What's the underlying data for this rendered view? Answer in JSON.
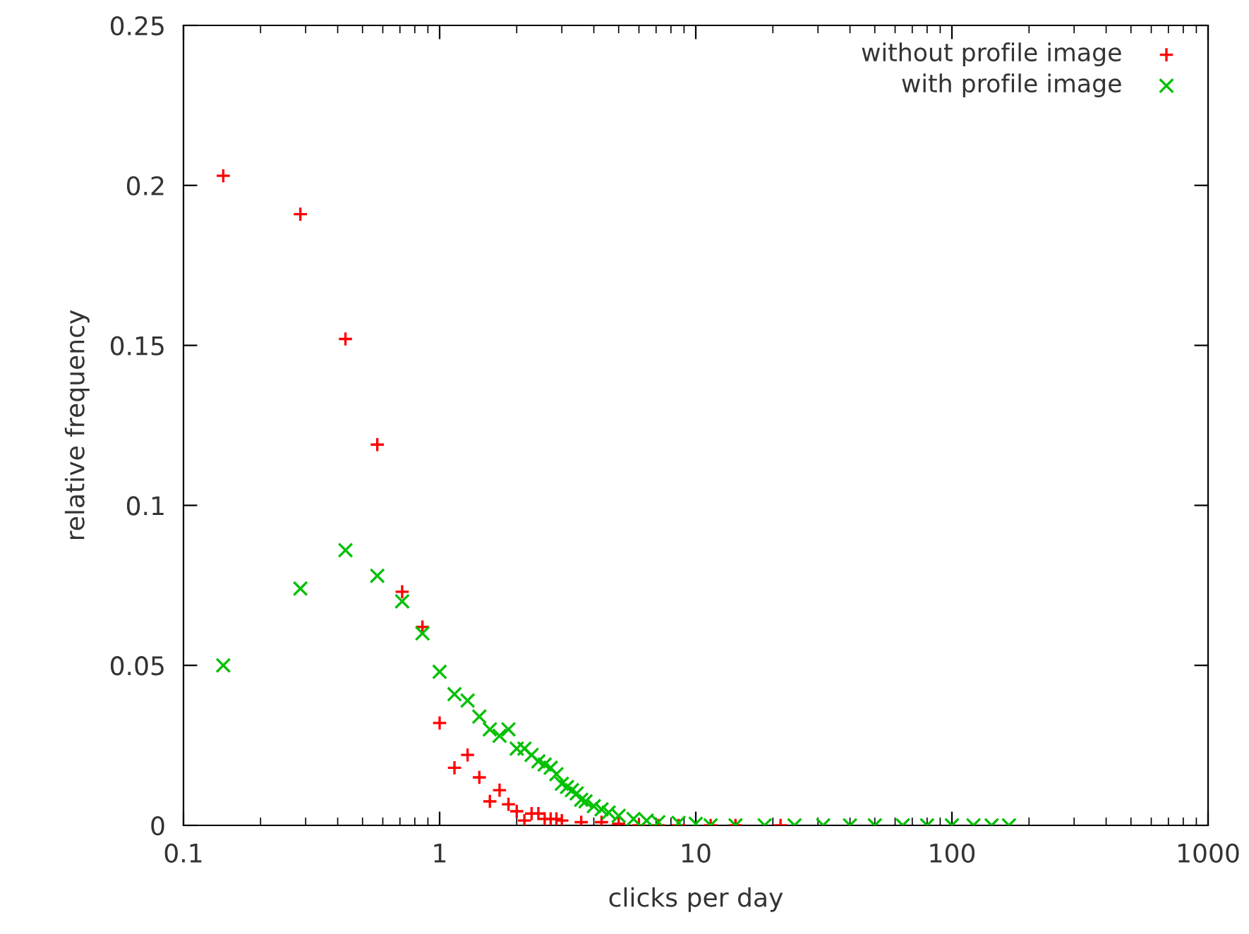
{
  "chart_data": {
    "type": "scatter",
    "xlabel": "clicks per day",
    "ylabel": "relative frequency",
    "log": "x",
    "xlim": [
      0.1,
      1000
    ],
    "xticks": [
      0.1,
      1,
      10,
      100,
      1000
    ],
    "ylim": [
      0,
      0.25
    ],
    "yticks": [
      0,
      0.05,
      0.1,
      0.15,
      0.2,
      0.25
    ],
    "grid": false,
    "legend": "top right",
    "series": [
      {
        "name": "without profile image",
        "color": "#ff0000",
        "marker": "plus",
        "x": [
          0.143,
          0.286,
          0.429,
          0.571,
          0.714,
          0.857,
          1.0,
          1.143,
          1.286,
          1.429,
          1.571,
          1.714,
          1.857,
          2.0,
          2.143,
          2.286,
          2.429,
          2.571,
          2.714,
          2.857,
          3.0,
          3.571,
          4.286,
          5.0,
          6.0,
          7.143,
          8.571,
          11.43,
          14.29,
          21.43
        ],
        "values": [
          0.203,
          0.191,
          0.152,
          0.119,
          0.073,
          0.062,
          0.032,
          0.018,
          0.022,
          0.015,
          0.0075,
          0.011,
          0.0066,
          0.0044,
          0.0015,
          0.0037,
          0.0037,
          0.002,
          0.002,
          0.002,
          0.0015,
          0.001,
          0.001,
          0.0005,
          0,
          0,
          0,
          0,
          0,
          0
        ]
      },
      {
        "name": "with profile image",
        "color": "#00c000",
        "marker": "cross",
        "x": [
          0.143,
          0.286,
          0.429,
          0.571,
          0.714,
          0.857,
          1.0,
          1.143,
          1.286,
          1.429,
          1.571,
          1.714,
          1.857,
          2.0,
          2.143,
          2.286,
          2.429,
          2.571,
          2.714,
          2.857,
          3.0,
          3.143,
          3.286,
          3.429,
          3.571,
          3.714,
          4.0,
          4.286,
          4.571,
          5.0,
          5.714,
          6.429,
          7.143,
          8.571,
          10.0,
          11.43,
          14.29,
          18.57,
          24.29,
          31.43,
          40.0,
          50.0,
          64.29,
          80.0,
          100.0,
          121.4,
          142.9,
          167.0
        ],
        "values": [
          0.05,
          0.074,
          0.086,
          0.078,
          0.07,
          0.06,
          0.048,
          0.041,
          0.039,
          0.034,
          0.03,
          0.028,
          0.03,
          0.024,
          0.024,
          0.022,
          0.02,
          0.019,
          0.018,
          0.016,
          0.013,
          0.012,
          0.011,
          0.01,
          0.008,
          0.0075,
          0.006,
          0.005,
          0.004,
          0.003,
          0.002,
          0.0015,
          0.001,
          0.0008,
          0.0005,
          0,
          0,
          0,
          0,
          0,
          0,
          0,
          0,
          0,
          0,
          0,
          0,
          0
        ]
      }
    ]
  }
}
